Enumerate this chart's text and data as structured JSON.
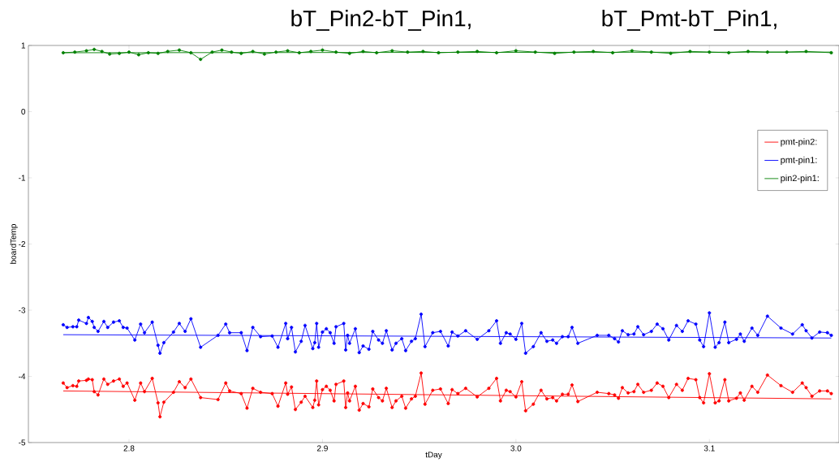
{
  "chart_data": {
    "type": "line",
    "xlabel": "tDay",
    "ylabel": "boardTemp",
    "annotations": [
      "bT_Pin2-bT_Pin1,",
      "bT_Pmt-bT_Pin1,"
    ],
    "xlim": [
      2.748,
      3.167
    ],
    "ylim": [
      -5,
      1
    ],
    "xticks": [
      {
        "value": 2.8,
        "label": "2.8"
      },
      {
        "value": 2.9,
        "label": "2.9"
      },
      {
        "value": 3.0,
        "label": "3.0"
      },
      {
        "value": 3.1,
        "label": "3.1"
      }
    ],
    "yticks": [
      -5,
      -4,
      -3,
      -2,
      -1,
      0,
      1
    ],
    "grid": false,
    "legend": "right",
    "x": [
      2.766,
      2.768,
      2.771,
      2.773,
      2.774,
      2.778,
      2.779,
      2.781,
      2.782,
      2.784,
      2.787,
      2.789,
      2.792,
      2.795,
      2.797,
      2.799,
      2.803,
      2.806,
      2.808,
      2.812,
      2.815,
      2.816,
      2.818,
      2.823,
      2.826,
      2.829,
      2.832,
      2.837,
      2.846,
      2.85,
      2.852,
      2.858,
      2.861,
      2.864,
      2.868,
      2.874,
      2.877,
      2.881,
      2.882,
      2.884,
      2.886,
      2.889,
      2.891,
      2.895,
      2.896,
      2.897,
      2.898,
      2.9,
      2.902,
      2.904,
      2.906,
      2.907,
      2.911,
      2.912,
      2.913,
      2.914,
      2.917,
      2.919,
      2.921,
      2.924,
      2.926,
      2.929,
      2.931,
      2.933,
      2.936,
      2.938,
      2.941,
      2.943,
      2.946,
      2.948,
      2.951,
      2.953,
      2.957,
      2.961,
      2.965,
      2.967,
      2.97,
      2.974,
      2.98,
      2.986,
      2.99,
      2.992,
      2.995,
      2.997,
      3.0,
      3.003,
      3.005,
      3.009,
      3.013,
      3.016,
      3.019,
      3.021,
      3.024,
      3.027,
      3.029,
      3.032,
      3.042,
      3.048,
      3.051,
      3.053,
      3.055,
      3.058,
      3.061,
      3.063,
      3.066,
      3.07,
      3.073,
      3.076,
      3.079,
      3.083,
      3.086,
      3.089,
      3.093,
      3.095,
      3.097,
      3.1,
      3.103,
      3.105,
      3.108,
      3.11,
      3.114,
      3.116,
      3.118,
      3.122,
      3.125,
      3.13,
      3.137,
      3.143,
      3.148,
      3.15,
      3.153,
      3.157,
      3.161,
      3.163
    ],
    "series": [
      {
        "color": "#0000ff",
        "marker": "circle",
        "values": [
          -3.22,
          -3.26,
          -3.25,
          -3.25,
          -3.15,
          -3.2,
          -3.11,
          -3.17,
          -3.26,
          -3.32,
          -3.17,
          -3.26,
          -3.18,
          -3.16,
          -3.26,
          -3.27,
          -3.45,
          -3.21,
          -3.34,
          -3.18,
          -3.53,
          -3.65,
          -3.49,
          -3.33,
          -3.2,
          -3.32,
          -3.13,
          -3.56,
          -3.38,
          -3.21,
          -3.34,
          -3.34,
          -3.61,
          -3.26,
          -3.4,
          -3.39,
          -3.56,
          -3.2,
          -3.43,
          -3.26,
          -3.63,
          -3.47,
          -3.23,
          -3.58,
          -3.49,
          -3.2,
          -3.56,
          -3.33,
          -3.28,
          -3.34,
          -3.5,
          -3.25,
          -3.2,
          -3.6,
          -3.38,
          -3.5,
          -3.28,
          -3.64,
          -3.54,
          -3.59,
          -3.32,
          -3.45,
          -3.5,
          -3.31,
          -3.6,
          -3.5,
          -3.43,
          -3.61,
          -3.47,
          -3.43,
          -3.06,
          -3.55,
          -3.34,
          -3.32,
          -3.54,
          -3.33,
          -3.39,
          -3.31,
          -3.44,
          -3.31,
          -3.16,
          -3.5,
          -3.34,
          -3.36,
          -3.44,
          -3.2,
          -3.65,
          -3.55,
          -3.34,
          -3.47,
          -3.45,
          -3.5,
          -3.4,
          -3.4,
          -3.26,
          -3.5,
          -3.38,
          -3.38,
          -3.43,
          -3.48,
          -3.31,
          -3.37,
          -3.36,
          -3.25,
          -3.37,
          -3.32,
          -3.21,
          -3.28,
          -3.45,
          -3.23,
          -3.32,
          -3.16,
          -3.21,
          -3.45,
          -3.55,
          -3.04,
          -3.56,
          -3.49,
          -3.18,
          -3.49,
          -3.44,
          -3.36,
          -3.47,
          -3.27,
          -3.38,
          -3.09,
          -3.27,
          -3.36,
          -3.22,
          -3.31,
          -3.42,
          -3.33,
          -3.34,
          -3.38
        ]
      },
      {
        "color": "#ff0000",
        "marker": "circle",
        "values": [
          -4.1,
          -4.17,
          -4.14,
          -4.15,
          -4.07,
          -4.06,
          -4.04,
          -4.05,
          -4.23,
          -4.28,
          -4.04,
          -4.12,
          -4.07,
          -4.04,
          -4.15,
          -4.1,
          -4.36,
          -4.1,
          -4.23,
          -4.03,
          -4.4,
          -4.61,
          -4.39,
          -4.24,
          -4.08,
          -4.17,
          -4.04,
          -4.32,
          -4.35,
          -4.1,
          -4.22,
          -4.26,
          -4.48,
          -4.18,
          -4.24,
          -4.26,
          -4.45,
          -4.1,
          -4.27,
          -4.16,
          -4.5,
          -4.39,
          -4.3,
          -4.47,
          -4.36,
          -4.07,
          -4.43,
          -4.2,
          -4.15,
          -4.21,
          -4.37,
          -4.12,
          -4.07,
          -4.47,
          -4.25,
          -4.37,
          -4.15,
          -4.51,
          -4.41,
          -4.46,
          -4.19,
          -4.32,
          -4.37,
          -4.18,
          -4.47,
          -4.37,
          -4.3,
          -4.48,
          -4.34,
          -4.3,
          -3.95,
          -4.42,
          -4.21,
          -4.19,
          -4.41,
          -4.2,
          -4.26,
          -4.18,
          -4.31,
          -4.18,
          -4.03,
          -4.37,
          -4.21,
          -4.23,
          -4.31,
          -4.08,
          -4.52,
          -4.42,
          -4.21,
          -4.34,
          -4.32,
          -4.37,
          -4.27,
          -4.27,
          -4.13,
          -4.38,
          -4.24,
          -4.26,
          -4.28,
          -4.33,
          -4.17,
          -4.25,
          -4.23,
          -4.12,
          -4.24,
          -4.21,
          -4.1,
          -4.15,
          -4.32,
          -4.12,
          -4.21,
          -4.03,
          -4.05,
          -4.32,
          -4.4,
          -3.96,
          -4.4,
          -4.37,
          -4.05,
          -4.37,
          -4.33,
          -4.25,
          -4.36,
          -4.15,
          -4.24,
          -3.98,
          -4.14,
          -4.24,
          -4.1,
          -4.17,
          -4.3,
          -4.22,
          -4.22,
          -4.26
        ]
      },
      {
        "color": "#008000",
        "marker": "circle",
        "x": [
          2.766,
          2.772,
          2.778,
          2.782,
          2.786,
          2.79,
          2.795,
          2.8,
          2.805,
          2.81,
          2.815,
          2.82,
          2.826,
          2.832,
          2.837,
          2.843,
          2.848,
          2.853,
          2.858,
          2.864,
          2.87,
          2.876,
          2.882,
          2.888,
          2.894,
          2.9,
          2.907,
          2.914,
          2.921,
          2.928,
          2.936,
          2.944,
          2.952,
          2.96,
          2.97,
          2.98,
          2.99,
          3.0,
          3.01,
          3.02,
          3.03,
          3.04,
          3.05,
          3.06,
          3.07,
          3.08,
          3.09,
          3.1,
          3.11,
          3.12,
          3.13,
          3.14,
          3.15,
          3.163
        ],
        "values": [
          0.89,
          0.9,
          0.92,
          0.94,
          0.91,
          0.87,
          0.88,
          0.9,
          0.86,
          0.89,
          0.88,
          0.91,
          0.93,
          0.89,
          0.79,
          0.9,
          0.93,
          0.9,
          0.88,
          0.91,
          0.87,
          0.9,
          0.92,
          0.89,
          0.91,
          0.93,
          0.9,
          0.88,
          0.91,
          0.89,
          0.92,
          0.9,
          0.91,
          0.89,
          0.9,
          0.91,
          0.89,
          0.92,
          0.9,
          0.88,
          0.9,
          0.91,
          0.89,
          0.92,
          0.9,
          0.88,
          0.91,
          0.9,
          0.89,
          0.91,
          0.9,
          0.9,
          0.91,
          0.89
        ]
      },
      {
        "name": "pmt-pin2:",
        "color": "#ff0000",
        "marker": "none",
        "x": [
          2.766,
          3.163
        ],
        "values": [
          -4.22,
          -4.34
        ]
      },
      {
        "name": "pmt-pin1:",
        "color": "#0000ff",
        "marker": "none",
        "x": [
          2.766,
          3.163
        ],
        "values": [
          -3.37,
          -3.42
        ]
      },
      {
        "name": "pin2-pin1:",
        "color": "#008000",
        "marker": "none",
        "x": [
          2.766,
          3.163
        ],
        "values": [
          0.89,
          0.9
        ]
      }
    ]
  }
}
